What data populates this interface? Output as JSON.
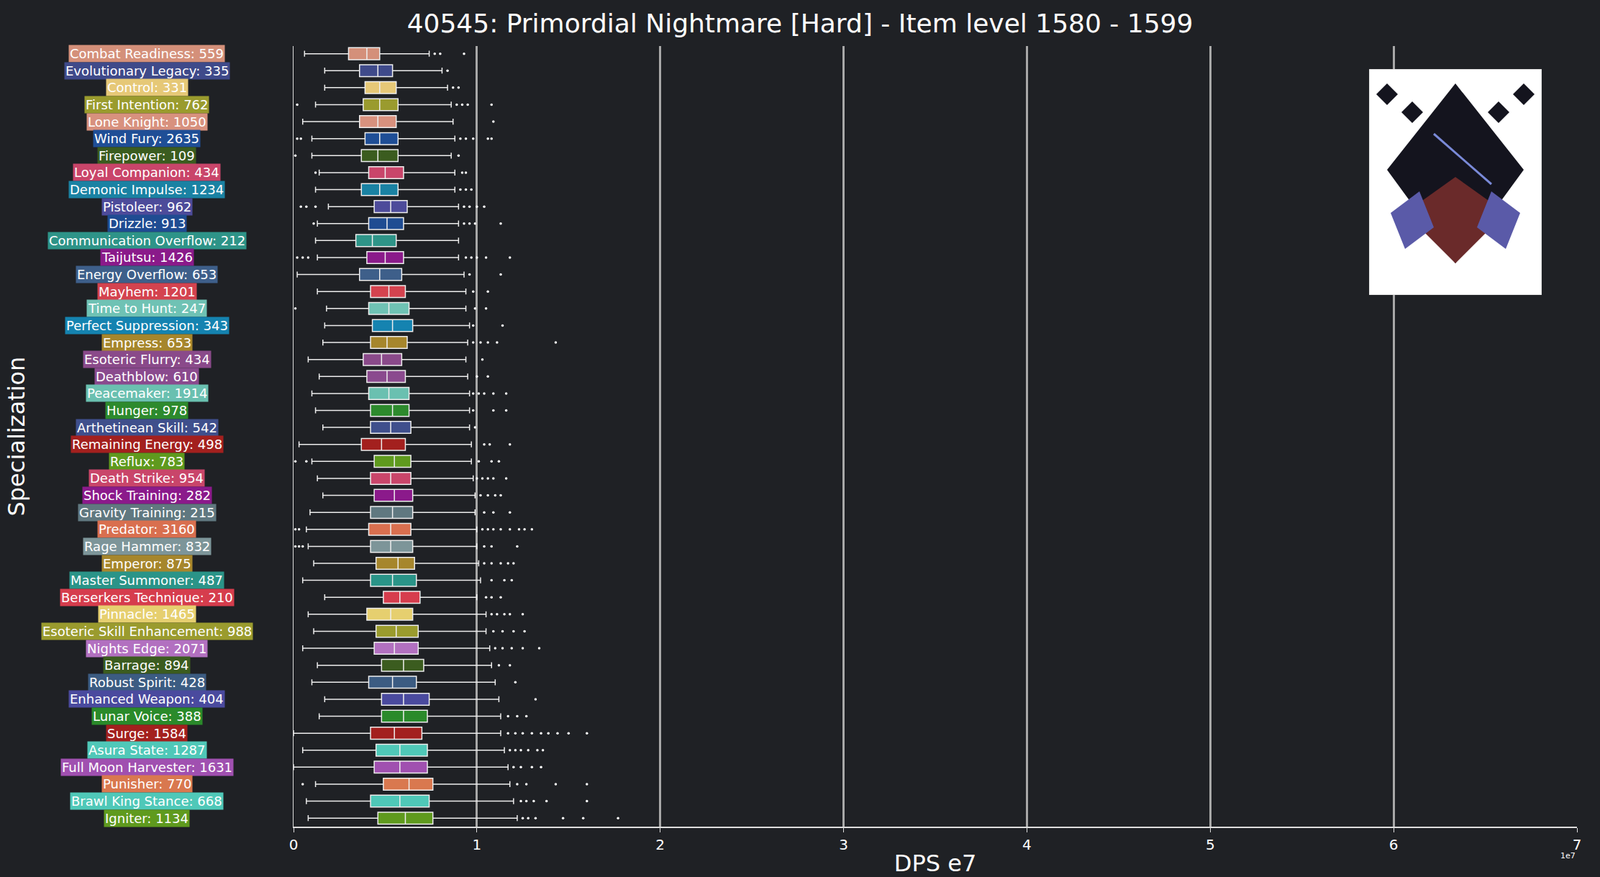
{
  "chart_data": {
    "type": "box",
    "orientation": "horizontal",
    "title": "40545: Primordial Nightmare [Hard] - Item level 1580 - 1599",
    "x_label": "DPS e7",
    "y_label": "Specialization",
    "xlim": [
      0,
      7
    ],
    "xticks": [
      0,
      1,
      2,
      3,
      4,
      5,
      6,
      7
    ],
    "grid": true,
    "annotations": [
      {
        "text": "1e7"
      }
    ],
    "boxes": [
      {
        "name": "Combat Readiness: 559",
        "color": "#d4907a",
        "lowerfence": 0.06,
        "q1": 0.3,
        "median": 0.4,
        "q3": 0.47,
        "upperfence": 0.74,
        "outliers": [
          0.77,
          0.8,
          0.93
        ]
      },
      {
        "name": "Evolutionary Legacy: 335",
        "color": "#3f4a8a",
        "lowerfence": 0.17,
        "q1": 0.36,
        "median": 0.46,
        "q3": 0.54,
        "upperfence": 0.81,
        "outliers": [
          0.84
        ]
      },
      {
        "name": "Control: 331",
        "color": "#e6c877",
        "lowerfence": 0.17,
        "q1": 0.39,
        "median": 0.47,
        "q3": 0.56,
        "upperfence": 0.84,
        "outliers": [
          0.87,
          0.9
        ]
      },
      {
        "name": "First Intention: 762",
        "color": "#9a9b2e",
        "lowerfence": 0.12,
        "q1": 0.38,
        "median": 0.47,
        "q3": 0.57,
        "upperfence": 0.86,
        "outliers": [
          0.02,
          0.89,
          0.92,
          0.95,
          1.08
        ]
      },
      {
        "name": "Lone Knight: 1050",
        "color": "#d8917e",
        "lowerfence": 0.05,
        "q1": 0.36,
        "median": 0.46,
        "q3": 0.56,
        "upperfence": 0.87,
        "outliers": [
          1.09
        ]
      },
      {
        "name": "Wind Fury: 2635",
        "color": "#1f4e96",
        "lowerfence": 0.1,
        "q1": 0.39,
        "median": 0.47,
        "q3": 0.57,
        "upperfence": 0.88,
        "outliers": [
          0.02,
          0.04,
          0.91,
          0.94,
          0.98,
          1.06,
          1.08
        ]
      },
      {
        "name": "Firepower: 109",
        "color": "#3b5c1f",
        "lowerfence": 0.1,
        "q1": 0.37,
        "median": 0.46,
        "q3": 0.57,
        "upperfence": 0.86,
        "outliers": [
          0.01,
          0.9
        ]
      },
      {
        "name": "Loyal Companion: 434",
        "color": "#c9456a",
        "lowerfence": 0.14,
        "q1": 0.41,
        "median": 0.5,
        "q3": 0.6,
        "upperfence": 0.88,
        "outliers": [
          0.12,
          0.92,
          0.94
        ]
      },
      {
        "name": "Demonic Impulse: 1234",
        "color": "#1a82a3",
        "lowerfence": 0.12,
        "q1": 0.37,
        "median": 0.47,
        "q3": 0.57,
        "upperfence": 0.88,
        "outliers": [
          0.91,
          0.94,
          0.97
        ]
      },
      {
        "name": "Pistoleer: 962",
        "color": "#4d4b9a",
        "lowerfence": 0.19,
        "q1": 0.44,
        "median": 0.53,
        "q3": 0.62,
        "upperfence": 0.9,
        "outliers": [
          0.04,
          0.07,
          0.12,
          0.93,
          0.96,
          1.0,
          1.04
        ]
      },
      {
        "name": "Drizzle: 913",
        "color": "#1f4c92",
        "lowerfence": 0.13,
        "q1": 0.41,
        "median": 0.51,
        "q3": 0.6,
        "upperfence": 0.9,
        "outliers": [
          0.11,
          0.93,
          0.96,
          0.99,
          1.13
        ]
      },
      {
        "name": "Communication Overflow: 212",
        "color": "#2e9488",
        "lowerfence": 0.12,
        "q1": 0.34,
        "median": 0.43,
        "q3": 0.56,
        "upperfence": 0.9,
        "outliers": []
      },
      {
        "name": "Taijutsu: 1426",
        "color": "#8a1a8a",
        "lowerfence": 0.13,
        "q1": 0.4,
        "median": 0.5,
        "q3": 0.6,
        "upperfence": 0.9,
        "outliers": [
          0.02,
          0.05,
          0.08,
          0.94,
          0.97,
          1.0,
          1.05,
          1.18
        ]
      },
      {
        "name": "Energy Overflow: 653",
        "color": "#3e5f8a",
        "lowerfence": 0.02,
        "q1": 0.36,
        "median": 0.47,
        "q3": 0.59,
        "upperfence": 0.93,
        "outliers": [
          0.96,
          1.13
        ]
      },
      {
        "name": "Mayhem: 1201",
        "color": "#d4434f",
        "lowerfence": 0.13,
        "q1": 0.42,
        "median": 0.52,
        "q3": 0.61,
        "upperfence": 0.94,
        "outliers": [
          0.98,
          1.06
        ]
      },
      {
        "name": "Time to Hunt: 247",
        "color": "#6fc2b4",
        "lowerfence": 0.18,
        "q1": 0.41,
        "median": 0.52,
        "q3": 0.63,
        "upperfence": 0.94,
        "outliers": [
          0.01,
          0.99,
          1.05
        ]
      },
      {
        "name": "Perfect Suppression: 343",
        "color": "#1583b0",
        "lowerfence": 0.17,
        "q1": 0.43,
        "median": 0.54,
        "q3": 0.65,
        "upperfence": 0.96,
        "outliers": [
          0.98,
          1.14
        ]
      },
      {
        "name": "Empress: 653",
        "color": "#a6862c",
        "lowerfence": 0.16,
        "q1": 0.42,
        "median": 0.51,
        "q3": 0.62,
        "upperfence": 0.95,
        "outliers": [
          0.98,
          1.02,
          1.06,
          1.11,
          1.43
        ]
      },
      {
        "name": "Esoteric Flurry: 434",
        "color": "#8a4a8a",
        "lowerfence": 0.08,
        "q1": 0.38,
        "median": 0.48,
        "q3": 0.59,
        "upperfence": 0.94,
        "outliers": [
          1.03
        ]
      },
      {
        "name": "Deathblow: 610",
        "color": "#8a4a8e",
        "lowerfence": 0.14,
        "q1": 0.4,
        "median": 0.51,
        "q3": 0.61,
        "upperfence": 0.95,
        "outliers": [
          1.0,
          1.06
        ]
      },
      {
        "name": "Peacemaker: 1914",
        "color": "#6ac0b0",
        "lowerfence": 0.1,
        "q1": 0.41,
        "median": 0.52,
        "q3": 0.63,
        "upperfence": 0.96,
        "outliers": [
          0.98,
          1.01,
          1.04,
          1.09,
          1.16
        ]
      },
      {
        "name": "Hunger: 978",
        "color": "#2d8a2d",
        "lowerfence": 0.12,
        "q1": 0.42,
        "median": 0.54,
        "q3": 0.63,
        "upperfence": 0.96,
        "outliers": [
          0.98,
          1.09,
          1.16
        ]
      },
      {
        "name": "Arthetinean Skill: 542",
        "color": "#3f4f8c",
        "lowerfence": 0.16,
        "q1": 0.42,
        "median": 0.53,
        "q3": 0.64,
        "upperfence": 0.96,
        "outliers": [
          0.99
        ]
      },
      {
        "name": "Remaining Energy: 498",
        "color": "#a3201e",
        "lowerfence": 0.03,
        "q1": 0.37,
        "median": 0.48,
        "q3": 0.61,
        "upperfence": 0.97,
        "outliers": [
          1.04,
          1.07,
          1.18
        ]
      },
      {
        "name": "Reflux: 783",
        "color": "#5f9a1e",
        "lowerfence": 0.1,
        "q1": 0.44,
        "median": 0.55,
        "q3": 0.64,
        "upperfence": 0.97,
        "outliers": [
          0.01,
          0.07,
          1.01,
          1.08,
          1.12
        ]
      },
      {
        "name": "Death Strike: 954",
        "color": "#c9456a",
        "lowerfence": 0.13,
        "q1": 0.42,
        "median": 0.53,
        "q3": 0.64,
        "upperfence": 0.98,
        "outliers": [
          1.0,
          1.03,
          1.06,
          1.09,
          1.16
        ]
      },
      {
        "name": "Shock Training: 282",
        "color": "#8b1a8b",
        "lowerfence": 0.16,
        "q1": 0.44,
        "median": 0.55,
        "q3": 0.65,
        "upperfence": 0.99,
        "outliers": [
          1.02,
          1.06,
          1.1,
          1.13
        ]
      },
      {
        "name": "Gravity Training: 215",
        "color": "#607880",
        "lowerfence": 0.09,
        "q1": 0.42,
        "median": 0.54,
        "q3": 0.65,
        "upperfence": 0.99,
        "outliers": [
          1.04,
          1.09,
          1.18
        ]
      },
      {
        "name": "Predator: 3160",
        "color": "#d96f4f",
        "lowerfence": 0.07,
        "q1": 0.41,
        "median": 0.53,
        "q3": 0.64,
        "upperfence": 1.0,
        "outliers": [
          0.01,
          0.03,
          1.03,
          1.06,
          1.09,
          1.13,
          1.18,
          1.23,
          1.26,
          1.3
        ]
      },
      {
        "name": "Rage Hammer: 832",
        "color": "#7d9599",
        "lowerfence": 0.08,
        "q1": 0.42,
        "median": 0.53,
        "q3": 0.65,
        "upperfence": 1.0,
        "outliers": [
          0.01,
          0.03,
          0.05,
          1.04,
          1.08,
          1.22
        ]
      },
      {
        "name": "Emperor: 875",
        "color": "#a6862c",
        "lowerfence": 0.11,
        "q1": 0.45,
        "median": 0.57,
        "q3": 0.66,
        "upperfence": 1.01,
        "outliers": [
          1.04,
          1.08,
          1.13,
          1.17,
          1.2
        ]
      },
      {
        "name": "Master Summoner: 487",
        "color": "#2a9488",
        "lowerfence": 0.05,
        "q1": 0.42,
        "median": 0.54,
        "q3": 0.67,
        "upperfence": 1.02,
        "outliers": [
          1.08,
          1.15,
          1.19
        ]
      },
      {
        "name": "Berserkers Technique: 210",
        "color": "#d63d4d",
        "lowerfence": 0.17,
        "q1": 0.49,
        "median": 0.58,
        "q3": 0.69,
        "upperfence": 1.0,
        "outliers": [
          1.05,
          1.08,
          1.13
        ]
      },
      {
        "name": "Pinnacle: 1465",
        "color": "#e6cf6f",
        "lowerfence": 0.08,
        "q1": 0.4,
        "median": 0.53,
        "q3": 0.65,
        "upperfence": 1.05,
        "outliers": [
          1.08,
          1.11,
          1.15,
          1.18,
          1.25
        ]
      },
      {
        "name": "Esoteric Skill Enhancement: 988",
        "color": "#9a9b2e",
        "lowerfence": 0.11,
        "q1": 0.45,
        "median": 0.56,
        "q3": 0.68,
        "upperfence": 1.05,
        "outliers": [
          1.09,
          1.14,
          1.2,
          1.26
        ]
      },
      {
        "name": "Nights Edge: 2071",
        "color": "#b270c0",
        "lowerfence": 0.05,
        "q1": 0.44,
        "median": 0.55,
        "q3": 0.68,
        "upperfence": 1.07,
        "outliers": [
          1.1,
          1.14,
          1.19,
          1.25,
          1.34
        ]
      },
      {
        "name": "Barrage: 894",
        "color": "#3b5c1f",
        "lowerfence": 0.13,
        "q1": 0.48,
        "median": 0.6,
        "q3": 0.71,
        "upperfence": 1.08,
        "outliers": [
          1.12,
          1.18
        ]
      },
      {
        "name": "Robust Spirit: 428",
        "color": "#3c5c82",
        "lowerfence": 0.1,
        "q1": 0.41,
        "median": 0.54,
        "q3": 0.67,
        "upperfence": 1.1,
        "outliers": [
          1.21
        ]
      },
      {
        "name": "Enhanced Weapon: 404",
        "color": "#4a4a9e",
        "lowerfence": 0.17,
        "q1": 0.48,
        "median": 0.6,
        "q3": 0.74,
        "upperfence": 1.12,
        "outliers": [
          1.32
        ]
      },
      {
        "name": "Lunar Voice: 388",
        "color": "#2a8a2a",
        "lowerfence": 0.14,
        "q1": 0.48,
        "median": 0.6,
        "q3": 0.73,
        "upperfence": 1.13,
        "outliers": [
          1.17,
          1.22,
          1.27
        ]
      },
      {
        "name": "Surge: 1584",
        "color": "#a3201e",
        "lowerfence": 0.0,
        "q1": 0.42,
        "median": 0.55,
        "q3": 0.7,
        "upperfence": 1.13,
        "outliers": [
          1.17,
          1.21,
          1.25,
          1.3,
          1.35,
          1.39,
          1.44,
          1.5,
          1.6
        ]
      },
      {
        "name": "Asura State: 1287",
        "color": "#4fc8b8",
        "lowerfence": 0.05,
        "q1": 0.45,
        "median": 0.58,
        "q3": 0.73,
        "upperfence": 1.15,
        "outliers": [
          1.18,
          1.21,
          1.24,
          1.28,
          1.33,
          1.36
        ]
      },
      {
        "name": "Full Moon Harvester: 1631",
        "color": "#a050b0",
        "lowerfence": 0.0,
        "q1": 0.44,
        "median": 0.58,
        "q3": 0.73,
        "upperfence": 1.17,
        "outliers": [
          1.2,
          1.24,
          1.3,
          1.35
        ]
      },
      {
        "name": "Punisher: 770",
        "color": "#d9784f",
        "lowerfence": 0.12,
        "q1": 0.49,
        "median": 0.63,
        "q3": 0.76,
        "upperfence": 1.18,
        "outliers": [
          0.05,
          1.22,
          1.27,
          1.43,
          1.6
        ]
      },
      {
        "name": "Brawl King Stance: 668",
        "color": "#4fc8b8",
        "lowerfence": 0.07,
        "q1": 0.42,
        "median": 0.58,
        "q3": 0.74,
        "upperfence": 1.2,
        "outliers": [
          1.24,
          1.27,
          1.31,
          1.38,
          1.6
        ]
      },
      {
        "name": "Igniter: 1134",
        "color": "#5f9a1e",
        "lowerfence": 0.08,
        "q1": 0.46,
        "median": 0.61,
        "q3": 0.76,
        "upperfence": 1.22,
        "outliers": [
          1.25,
          1.28,
          1.32,
          1.47,
          1.58,
          1.77
        ]
      }
    ]
  }
}
